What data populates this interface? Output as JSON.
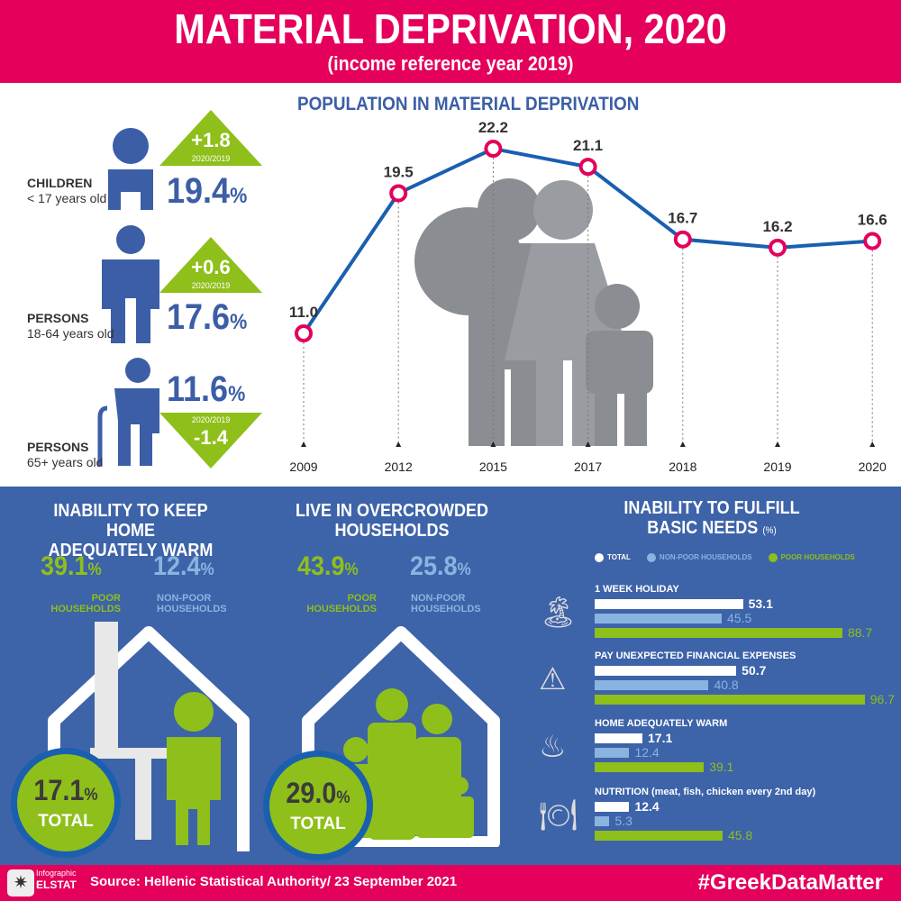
{
  "header": {
    "title": "MATERIAL DEPRIVATION, 2020",
    "subtitle": "(income reference year 2019)"
  },
  "population": {
    "title": "POPULATION IN MATERIAL DEPRIVATION",
    "groups": [
      {
        "label": "CHILDREN",
        "sublabel": "< 17 years old",
        "value": "19.4",
        "unit": "%",
        "change": "+1.8",
        "change_period": "2020/2019",
        "direction": "up"
      },
      {
        "label": "PERSONS",
        "sublabel": "18-64 years old",
        "value": "17.6",
        "unit": "%",
        "change": "+0.6",
        "change_period": "2020/2019",
        "direction": "up"
      },
      {
        "label": "PERSONS",
        "sublabel": "65+ years old",
        "value": "11.6",
        "unit": "%",
        "change": "-1.4",
        "change_period": "2020/2019",
        "direction": "down"
      }
    ]
  },
  "warm": {
    "title_1": "INABILITY TO KEEP HOME",
    "title_2": "ADEQUATELY WARM",
    "poor": "39.1",
    "nonpoor": "12.4",
    "unit": "%",
    "poor_label_1": "POOR",
    "poor_label_2": "HOUSEHOLDS",
    "nonpoor_label_1": "NON-POOR",
    "nonpoor_label_2": "HOUSEHOLDS",
    "total": "17.1",
    "total_label": "TOTAL"
  },
  "crowd": {
    "title_1": "LIVE IN OVERCROWDED",
    "title_2": "HOUSEHOLDS",
    "poor": "43.9",
    "nonpoor": "25.8",
    "unit": "%",
    "poor_label_1": "POOR",
    "poor_label_2": "HOUSEHOLDS",
    "nonpoor_label_1": "NON-POOR",
    "nonpoor_label_2": "HOUSEHOLDS",
    "total": "29.0",
    "total_label": "TOTAL"
  },
  "colors": {
    "pink": "#e4005b",
    "blue": "#3d63a9",
    "green": "#8fbf1a",
    "light_blue": "#8ab4e0",
    "line": "#1a5fb0"
  },
  "chart_data": [
    {
      "type": "line",
      "title": "POPULATION IN MATERIAL DEPRIVATION",
      "categories": [
        "2009",
        "2012",
        "2015",
        "2017",
        "2018",
        "2019",
        "2020"
      ],
      "values": [
        11.0,
        19.5,
        22.2,
        21.1,
        16.7,
        16.2,
        16.6
      ],
      "unit": "%",
      "grid": false
    },
    {
      "type": "bar",
      "orientation": "horizontal",
      "title_1": "INABILITY TO FULFILL",
      "title_2": "BASIC NEEDS",
      "title_unit": "(%)",
      "legend": [
        "TOTAL",
        "NON-POOR HOUSEHOLDS",
        "POOR HOUSEHOLDS"
      ],
      "legend_placement": "top",
      "categories": [
        "1 WEEK HOLIDAY",
        "PAY UNEXPECTED FINANCIAL EXPENSES",
        "HOME ADEQUATELY WARM",
        "NUTRITION (meat, fish, chicken every 2nd day)"
      ],
      "icons": [
        "island-icon",
        "warning-icon",
        "radiator-icon",
        "dining-icon"
      ],
      "series": [
        {
          "name": "TOTAL",
          "values": [
            53.1,
            50.7,
            17.1,
            12.4
          ]
        },
        {
          "name": "NON-POOR HOUSEHOLDS",
          "values": [
            45.5,
            40.8,
            12.4,
            5.3
          ]
        },
        {
          "name": "POOR HOUSEHOLDS",
          "values": [
            88.7,
            96.7,
            39.1,
            45.8
          ]
        }
      ],
      "xlim": [
        0,
        100
      ]
    }
  ],
  "footer": {
    "logo_1": "Infographic",
    "logo_2": "ELSTAT",
    "source": "Source: Hellenic Statistical Authority/ 23 September 2021",
    "hashtag": "#GreekDataMatter"
  }
}
